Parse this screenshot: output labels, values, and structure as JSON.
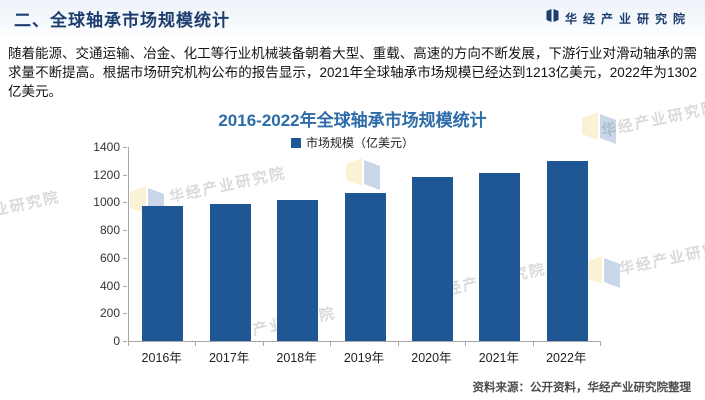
{
  "header": {
    "title": "二、全球轴承市场规模统计",
    "brand": "华经产业研究院"
  },
  "paragraph": {
    "text": "随着能源、交通运输、冶金、化工等行业机械装备朝着大型、重载、高速的方向不断发展，下游行业对滑动轴承的需求量不断提高。根据市场研究机构公布的报告显示，2021年全球轴承市场规模已经达到1213亿美元，2022年为1302亿美元。"
  },
  "chart_data": {
    "type": "bar",
    "title": "2016-2022年全球轴承市场规模统计",
    "legend": "市场规模（亿美元）",
    "legend_position": "top",
    "categories": [
      "2016年",
      "2017年",
      "2018年",
      "2019年",
      "2020年",
      "2021年",
      "2022年"
    ],
    "values": [
      975,
      990,
      1020,
      1065,
      1185,
      1213,
      1302
    ],
    "xlabel": "",
    "ylabel": "",
    "ylim": [
      0,
      1400
    ],
    "ytick_step": 200,
    "grid": false,
    "bar_color": "#1f5795"
  },
  "footer": {
    "source": "资料来源：公开资料，华经产业研究院整理"
  },
  "watermark": {
    "text": "华经产业研究院"
  },
  "colors": {
    "header_navy": "#1c3d6e",
    "chart_title_blue": "#2d6ca8",
    "bar_blue": "#1f5795",
    "axis_gray": "#a6a6a6",
    "watermark_gray": "#9e9e9e",
    "watermark_yellow": "#e9cb56",
    "watermark_blue": "#3a6cb0"
  }
}
